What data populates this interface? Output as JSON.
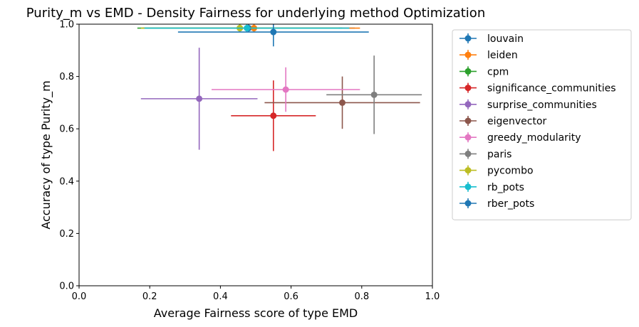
{
  "chart_data": {
    "type": "scatter",
    "title": "Purity_m vs EMD - Density Fairness for underlying method Optimization",
    "xlabel": "Average Fairness score of type EMD",
    "ylabel": "Accuracy of type Purity_m",
    "xlim": [
      0,
      1
    ],
    "ylim": [
      0,
      1
    ],
    "xticks": [
      "0.0",
      "0.2",
      "0.4",
      "0.6",
      "0.8",
      "1.0"
    ],
    "yticks": [
      "0.0",
      "0.2",
      "0.4",
      "0.6",
      "0.8",
      "1.0"
    ],
    "grid": false,
    "legend_position": "outside-right",
    "series": [
      {
        "name": "louvain",
        "color": "#1f77b4",
        "x": 0.48,
        "y": 0.985,
        "xerr": 0.3,
        "yerr": 0.015
      },
      {
        "name": "leiden",
        "color": "#ff7f0e",
        "x": 0.495,
        "y": 0.985,
        "xerr": 0.3,
        "yerr": 0.015
      },
      {
        "name": "cpm",
        "color": "#2ca02c",
        "x": 0.455,
        "y": 0.985,
        "xerr": 0.29,
        "yerr": 0.015
      },
      {
        "name": "significance_communities",
        "color": "#d62728",
        "x": 0.55,
        "y": 0.65,
        "xerr": 0.12,
        "yerr": 0.135
      },
      {
        "name": "surprise_communities",
        "color": "#9467bd",
        "x": 0.34,
        "y": 0.715,
        "xerr": 0.165,
        "yerr": 0.195
      },
      {
        "name": "eigenvector",
        "color": "#8c564b",
        "x": 0.745,
        "y": 0.7,
        "xerr": 0.22,
        "yerr": 0.1
      },
      {
        "name": "greedy_modularity",
        "color": "#e377c2",
        "x": 0.585,
        "y": 0.75,
        "xerr": 0.21,
        "yerr": 0.085
      },
      {
        "name": "paris",
        "color": "#7f7f7f",
        "x": 0.835,
        "y": 0.73,
        "xerr": 0.135,
        "yerr": 0.15
      },
      {
        "name": "pycombo",
        "color": "#bcbd22",
        "x": 0.455,
        "y": 0.985,
        "xerr": 0.28,
        "yerr": 0.015
      },
      {
        "name": "rb_pots",
        "color": "#17becf",
        "x": 0.475,
        "y": 0.985,
        "xerr": 0.29,
        "yerr": 0.015
      },
      {
        "name": "rber_pots",
        "color": "#1f77b4",
        "x": 0.55,
        "y": 0.97,
        "xerr": 0.27,
        "yerr": 0.055
      }
    ]
  }
}
